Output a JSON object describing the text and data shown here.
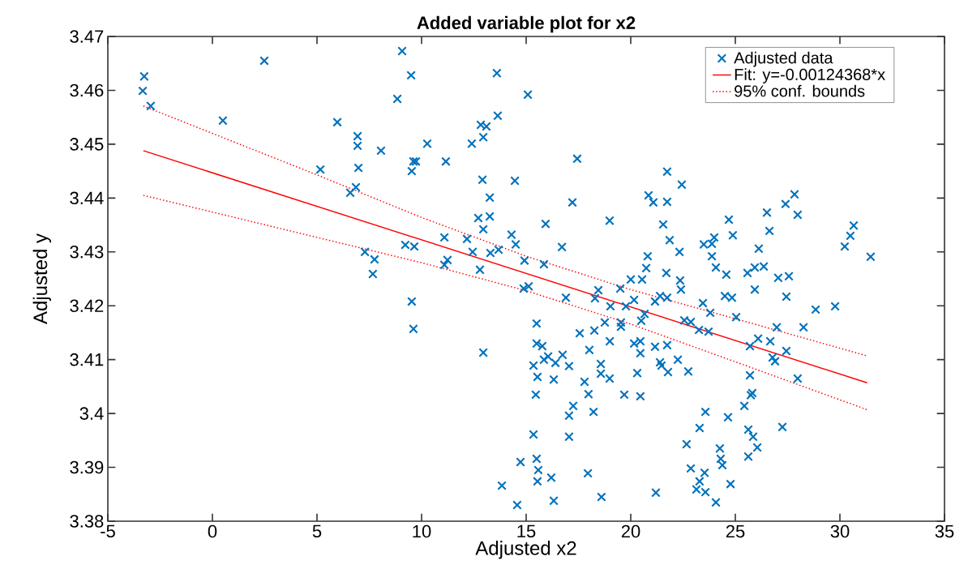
{
  "chart_data": {
    "type": "scatter",
    "title": "Added variable plot for x2",
    "xlabel": "Adjusted x2",
    "ylabel": "Adjusted y",
    "xlim": [
      -5,
      35
    ],
    "xticks": [
      -5,
      0,
      5,
      10,
      15,
      20,
      25,
      30,
      35
    ],
    "ylim": [
      3.38,
      3.47
    ],
    "yticks": [
      3.38,
      3.39,
      3.4,
      3.41,
      3.42,
      3.43,
      3.44,
      3.45,
      3.46,
      3.47
    ],
    "grid": false,
    "legend": "top right",
    "series": [
      {
        "name": "Adjusted data",
        "type": "scatter",
        "marker": "cross",
        "color": "#0072bd",
        "x": [
          -3.26,
          -3.33,
          -2.95,
          2.48,
          0.5,
          5.97,
          9.07,
          9.5,
          8.84,
          12.83,
          13.1,
          12.95,
          12.4,
          10.27,
          11.16,
          6.94,
          6.94,
          8.06,
          5.16,
          6.98,
          6.86,
          6.59,
          9.61,
          9.73,
          9.53,
          12.91,
          12.71,
          12.95,
          9.22,
          9.65,
          7.29,
          7.75,
          7.67,
          11.09,
          11.24,
          11.09,
          12.17,
          12.44,
          13.29,
          12.79,
          9.53,
          9.61,
          12.95,
          13.6,
          15.08,
          13.64,
          17.44,
          14.46,
          13.26,
          17.21,
          18.99,
          15.93,
          13.26,
          14.3,
          14.5,
          16.71,
          14.92,
          15.85,
          13.68,
          20.81,
          20.74,
          20.0,
          20.54,
          21.74,
          22.44,
          20.85,
          21.08,
          21.74,
          21.55,
          21.86,
          22.33,
          23.49,
          23.99,
          23.88,
          23.88,
          24.07,
          24.57,
          24.69,
          24.88,
          25.58,
          26.12,
          26.36,
          26.51,
          26.63,
          27.4,
          27.83,
          27.98,
          30.23,
          30.5,
          30.66,
          31.47,
          27.05,
          27.44,
          27.56,
          25.93,
          24.5,
          24.84,
          22.36,
          22.4,
          21.7,
          21.4,
          21.74,
          21.16,
          20.16,
          18.45,
          18.29,
          19.5,
          16.9,
          14.88,
          15.12,
          23.45,
          23.8,
          25.04,
          22.56,
          22.87,
          23.26,
          23.72,
          25.7,
          26.09,
          26.67,
          26.78,
          26.9,
          27.44,
          26.98,
          27.98,
          28.26,
          28.84,
          29.77,
          20.5,
          20.66,
          19.53,
          19.53,
          19.77,
          19.03,
          18.76,
          19.0,
          18.26,
          17.56,
          18.02,
          18.57,
          18.57,
          18.99,
          19.69,
          20.31,
          20.46,
          20.16,
          20.46,
          20.46,
          21.16,
          21.74,
          21.4,
          21.47,
          21.78,
          22.25,
          22.75,
          15.5,
          15.5,
          15.77,
          15.35,
          15.85,
          16.05,
          16.4,
          16.74,
          17.05,
          15.54,
          15.46,
          16.32,
          17.79,
          17.98,
          18.22,
          17.25,
          17.05,
          17.05,
          15.35,
          15.5,
          15.58,
          15.54,
          16.2,
          16.32,
          13.84,
          14.57,
          14.73,
          17.95,
          18.6,
          21.2,
          22.67,
          22.87,
          23.53,
          23.29,
          23.14,
          23.57,
          24.07,
          24.77,
          24.26,
          24.3,
          24.38,
          25.62,
          25.85,
          26.05,
          25.62,
          25.43,
          25.81,
          25.74,
          25.7,
          27.25,
          24.65,
          23.57,
          23.29,
          25.93
        ],
        "values": [
          3.4626,
          3.4599,
          3.4571,
          3.4655,
          3.4544,
          3.4541,
          3.4673,
          3.4628,
          3.4584,
          3.4536,
          3.4533,
          3.4513,
          3.4501,
          3.4501,
          3.4468,
          3.4515,
          3.4497,
          3.4488,
          3.4453,
          3.4456,
          3.442,
          3.441,
          3.4468,
          3.4468,
          3.445,
          3.4434,
          3.4363,
          3.4342,
          3.4313,
          3.431,
          3.43,
          3.4286,
          3.4259,
          3.4327,
          3.4285,
          3.4276,
          3.4324,
          3.43,
          3.4298,
          3.4267,
          3.4208,
          3.4157,
          3.4113,
          3.4632,
          3.4592,
          3.4553,
          3.4473,
          3.4432,
          3.4401,
          3.4392,
          3.4358,
          3.4352,
          3.4366,
          3.4332,
          3.4314,
          3.4309,
          3.4284,
          3.4277,
          3.4304,
          3.4292,
          3.427,
          3.4249,
          3.4249,
          3.4449,
          3.4425,
          3.4405,
          3.4392,
          3.4393,
          3.4351,
          3.4322,
          3.43,
          3.4314,
          3.4327,
          3.4315,
          3.4292,
          3.4271,
          3.4258,
          3.436,
          3.4331,
          3.4261,
          3.4306,
          3.4273,
          3.4373,
          3.4339,
          3.4389,
          3.4407,
          3.4369,
          3.431,
          3.433,
          3.4349,
          3.4291,
          3.4252,
          3.4217,
          3.4255,
          3.423,
          3.4218,
          3.4215,
          3.4247,
          3.423,
          3.4261,
          3.4218,
          3.4215,
          3.4208,
          3.4211,
          3.4229,
          3.4214,
          3.4232,
          3.4215,
          3.4232,
          3.4236,
          3.4205,
          3.4187,
          3.4179,
          3.4173,
          3.417,
          3.4155,
          3.4152,
          3.4125,
          3.4139,
          3.4134,
          3.4104,
          3.4097,
          3.4116,
          3.416,
          3.4065,
          3.416,
          3.4193,
          3.4199,
          3.4172,
          3.4185,
          3.4169,
          3.4161,
          3.4199,
          3.4199,
          3.4169,
          3.4134,
          3.4154,
          3.4149,
          3.4118,
          3.4092,
          3.4074,
          3.4065,
          3.4035,
          3.4075,
          3.4032,
          3.413,
          3.4134,
          3.4112,
          3.4124,
          3.4127,
          3.4095,
          3.4089,
          3.4077,
          3.41,
          3.4078,
          3.4167,
          3.413,
          3.4125,
          3.4089,
          3.41,
          3.4106,
          3.4094,
          3.4109,
          3.4088,
          3.4068,
          3.4035,
          3.4063,
          3.4059,
          3.4036,
          3.4003,
          3.4014,
          3.3996,
          3.3957,
          3.3961,
          3.3916,
          3.3895,
          3.3874,
          3.3881,
          3.3838,
          3.3866,
          3.383,
          3.391,
          3.3889,
          3.3845,
          3.3853,
          3.3943,
          3.3898,
          3.389,
          3.3874,
          3.3859,
          3.3854,
          3.3835,
          3.3869,
          3.3935,
          3.3916,
          3.3904,
          3.392,
          3.3957,
          3.3937,
          3.397,
          3.4014,
          3.4038,
          3.4034,
          3.4071,
          3.3975,
          3.3993,
          3.4003,
          3.3973,
          3.4271
        ]
      },
      {
        "name": "Fit: y=-0.00124368*x",
        "type": "line",
        "marker": "none",
        "line_style": "solid",
        "color": "#ff0000",
        "x": [
          -3.3,
          31.3
        ],
        "values": [
          3.4488,
          3.4057
        ]
      },
      {
        "name": "95% conf. bounds",
        "type": "line",
        "marker": "none",
        "line_style": "dotted",
        "color": "#ff0000",
        "x": [
          -3.3,
          5,
          10,
          15,
          20,
          25,
          31.3
        ],
        "values": [
          3.4571,
          3.4443,
          3.4364,
          3.4292,
          3.423,
          3.4176,
          3.4107
        ]
      },
      {
        "type": "line",
        "marker": "none",
        "line_style": "dotted",
        "color": "#ff0000",
        "x": [
          -3.3,
          5,
          10,
          15,
          20,
          25,
          31.3
        ],
        "values": [
          3.4405,
          3.4327,
          3.428,
          3.4228,
          3.4166,
          3.4096,
          3.4007
        ]
      }
    ]
  }
}
